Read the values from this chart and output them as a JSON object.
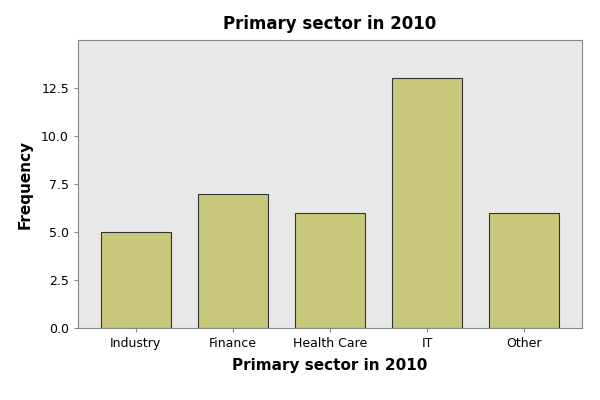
{
  "title": "Primary sector in 2010",
  "xlabel": "Primary sector in 2010",
  "ylabel": "Frequency",
  "categories": [
    "Industry",
    "Finance",
    "Health Care",
    "IT",
    "Other"
  ],
  "values": [
    5,
    7,
    6,
    13,
    6
  ],
  "bar_color": "#C8C87A",
  "bar_edge_color": "#333333",
  "bar_edge_width": 0.8,
  "ylim": [
    0,
    15
  ],
  "yticks": [
    0.0,
    2.5,
    5.0,
    7.5,
    10.0,
    12.5
  ],
  "plot_bg_color": "#E8E8E8",
  "figure_bg_color": "#FFFFFF",
  "spine_color": "#888888",
  "title_fontsize": 12,
  "label_fontsize": 11,
  "tick_fontsize": 9,
  "bar_width": 0.72,
  "figsize": [
    6.0,
    4.0
  ],
  "dpi": 100
}
